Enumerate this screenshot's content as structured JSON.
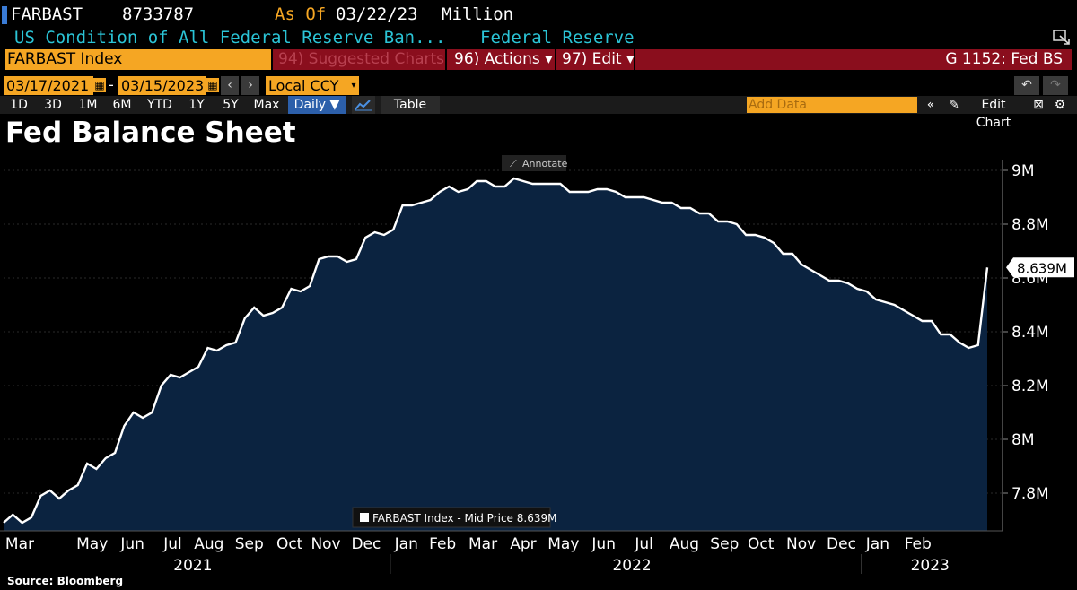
{
  "header": {
    "ticker": "FARBAST",
    "value": "8733787",
    "as_of_label": "As Of",
    "as_of_date": "03/22/23",
    "unit": "Million",
    "description": "US Condition of All Federal Reserve Ban...",
    "source": "Federal Reserve"
  },
  "toolbar": {
    "security": "FARBAST Index",
    "suggested": "94) Suggested Charts",
    "actions": "96) Actions ▾",
    "edit": "97) Edit ▾",
    "function": "G 1152: Fed BS"
  },
  "range": {
    "start": "03/17/2021",
    "end": "03/15/2023",
    "currency": "Local CCY"
  },
  "periods": [
    "1D",
    "3D",
    "1M",
    "6M",
    "YTD",
    "1Y",
    "5Y",
    "Max"
  ],
  "frequency": "Daily ▼",
  "table_label": "Table",
  "add_data_placeholder": "Add Data",
  "edit_chart_label": "Edit Chart",
  "annotate_label": "Annotate",
  "colors": {
    "accent_orange": "#f5a623",
    "bar_red": "#8a0e1d",
    "header_cyan": "#2bc4d6",
    "area_fill": "#0b2340"
  },
  "chart_data": {
    "type": "area",
    "title": "Fed Balance Sheet",
    "legend": "FARBAST Index - Mid Price 8.639M",
    "last_value_label": "8.639M",
    "source_note": "Source: Bloomberg",
    "y_tick_labels": [
      "7.8M",
      "8M",
      "8.2M",
      "8.4M",
      "8.6M",
      "8.8M",
      "9M"
    ],
    "y_ticks": [
      7.8,
      8.0,
      8.2,
      8.4,
      8.6,
      8.8,
      9.0
    ],
    "ylim": [
      7.66,
      9.04
    ],
    "x_month_labels": [
      "Mar",
      "May",
      "Jun",
      "Jul",
      "Aug",
      "Sep",
      "Oct",
      "Nov",
      "Dec",
      "Jan",
      "Feb",
      "Mar",
      "Apr",
      "May",
      "Jun",
      "Jul",
      "Aug",
      "Sep",
      "Oct",
      "Nov",
      "Dec",
      "Jan",
      "Feb"
    ],
    "x_month_positions": [
      0.4,
      2.2,
      3.2,
      4.2,
      5.1,
      6.1,
      7.1,
      8.0,
      9.0,
      10.0,
      10.9,
      11.9,
      12.9,
      13.9,
      14.9,
      15.9,
      16.9,
      17.9,
      18.8,
      19.8,
      20.8,
      21.7,
      22.7
    ],
    "x_year_labels": [
      "2021",
      "2022",
      "2023"
    ],
    "x_year_positions": [
      4.7,
      15.6,
      23.0
    ],
    "x_year_separators": [
      9.6,
      21.3
    ],
    "xlim": [
      0,
      24.8
    ],
    "series": [
      {
        "name": "FARBAST Index",
        "values": [
          7.69,
          7.72,
          7.69,
          7.71,
          7.79,
          7.81,
          7.78,
          7.81,
          7.83,
          7.91,
          7.89,
          7.93,
          7.95,
          8.05,
          8.1,
          8.08,
          8.1,
          8.2,
          8.24,
          8.23,
          8.25,
          8.27,
          8.34,
          8.33,
          8.35,
          8.36,
          8.45,
          8.49,
          8.46,
          8.47,
          8.49,
          8.56,
          8.55,
          8.57,
          8.67,
          8.68,
          8.68,
          8.66,
          8.67,
          8.75,
          8.77,
          8.76,
          8.78,
          8.87,
          8.87,
          8.88,
          8.89,
          8.92,
          8.94,
          8.92,
          8.93,
          8.96,
          8.96,
          8.94,
          8.94,
          8.97,
          8.96,
          8.95,
          8.95,
          8.95,
          8.95,
          8.92,
          8.92,
          8.92,
          8.93,
          8.93,
          8.92,
          8.9,
          8.9,
          8.9,
          8.89,
          8.88,
          8.88,
          8.86,
          8.86,
          8.84,
          8.84,
          8.81,
          8.81,
          8.8,
          8.76,
          8.76,
          8.75,
          8.73,
          8.69,
          8.69,
          8.65,
          8.63,
          8.61,
          8.59,
          8.59,
          8.58,
          8.56,
          8.55,
          8.52,
          8.51,
          8.5,
          8.48,
          8.46,
          8.44,
          8.44,
          8.39,
          8.39,
          8.36,
          8.34,
          8.35,
          8.639
        ]
      }
    ]
  }
}
